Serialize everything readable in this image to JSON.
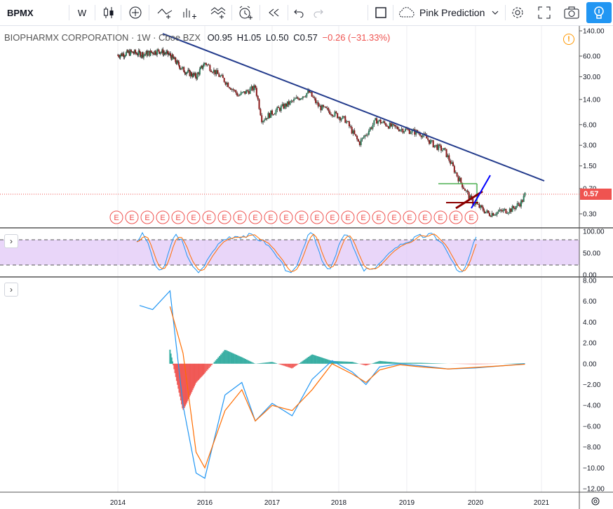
{
  "toolbar": {
    "symbol": "BPMX",
    "interval": "W",
    "bar_style_icon": "candles-icon",
    "add_icon": "plus-circle-icon",
    "compare_icon": "compare-icon",
    "indicators_icon": "indicators-icon",
    "templates_icon": "templates-icon",
    "alert_icon": "alarm-clock-icon",
    "replay_icon": "replay-icon",
    "undo_icon": "undo-icon",
    "redo_icon": "redo-icon",
    "layout_icon": "square-icon",
    "layout_name": "Pink Prediction",
    "settings_icon": "gear-icon",
    "fullscreen_icon": "fullscreen-icon",
    "snapshot_icon": "camera-icon",
    "publish_icon": "lightbulb-icon"
  },
  "legend": {
    "title": "BIOPHARMX CORPORATION · 1W · Cboe BZX",
    "open": "O0.95",
    "high": "H1.05",
    "low": "L0.50",
    "close": "C0.57",
    "change": "−0.26 (−31.33%)"
  },
  "colors": {
    "up": "#26a69a",
    "down": "#ef5350",
    "trendline": "#233b8c",
    "stoch_band": "#e1c8f7",
    "macd_line": "#2196f3",
    "signal_line": "#ff6d00",
    "price_tag": "#ef5350"
  },
  "price_tag": "0.57",
  "pane_buttons": [
    "›",
    "›"
  ],
  "earnings_marker": "E",
  "chart_data": [
    {
      "type": "candlestick",
      "scale": "log",
      "y_ticks": [
        "140.00",
        "60.00",
        "30.00",
        "14.00",
        "6.00",
        "3.00",
        "1.50",
        "0.70",
        "0.30"
      ],
      "x_ticks": [
        "2014",
        "2016",
        "2017",
        "2018",
        "2019",
        "2020",
        "2021"
      ],
      "path": [
        {
          "x": 2014.0,
          "y": 62
        },
        {
          "x": 2014.3,
          "y": 68
        },
        {
          "x": 2014.6,
          "y": 64
        },
        {
          "x": 2014.95,
          "y": 72
        },
        {
          "x": 2015.2,
          "y": 62
        },
        {
          "x": 2015.5,
          "y": 38
        },
        {
          "x": 2015.8,
          "y": 30
        },
        {
          "x": 2016.0,
          "y": 48
        },
        {
          "x": 2016.3,
          "y": 26
        },
        {
          "x": 2016.5,
          "y": 16
        },
        {
          "x": 2016.75,
          "y": 21
        },
        {
          "x": 2016.85,
          "y": 7
        },
        {
          "x": 2017.0,
          "y": 9
        },
        {
          "x": 2017.3,
          "y": 13
        },
        {
          "x": 2017.55,
          "y": 18
        },
        {
          "x": 2017.7,
          "y": 11
        },
        {
          "x": 2017.9,
          "y": 9
        },
        {
          "x": 2018.1,
          "y": 7
        },
        {
          "x": 2018.3,
          "y": 3.2
        },
        {
          "x": 2018.55,
          "y": 7
        },
        {
          "x": 2018.8,
          "y": 5.5
        },
        {
          "x": 2019.0,
          "y": 5
        },
        {
          "x": 2019.2,
          "y": 4.5
        },
        {
          "x": 2019.4,
          "y": 3
        },
        {
          "x": 2019.55,
          "y": 2.5
        },
        {
          "x": 2019.75,
          "y": 1
        },
        {
          "x": 2019.95,
          "y": 0.45
        },
        {
          "x": 2020.2,
          "y": 0.3
        },
        {
          "x": 2020.55,
          "y": 0.35
        },
        {
          "x": 2020.7,
          "y": 0.45
        },
        {
          "x": 2020.75,
          "y": 0.57
        }
      ],
      "earnings_count": 24
    },
    {
      "type": "line",
      "scale": "linear",
      "y_ticks": [
        "100.00",
        "50.00",
        "0.00"
      ],
      "band": [
        20,
        80
      ]
    },
    {
      "type": "histogram+line",
      "scale": "linear",
      "y_ticks": [
        "8.00",
        "6.00",
        "4.00",
        "2.00",
        "0.00",
        "−2.00",
        "−4.00",
        "−6.00",
        "−8.00",
        "−10.00",
        "−12.00"
      ],
      "series": [
        {
          "name": "MACD",
          "points": [
            [
              2014.5,
              5.6
            ],
            [
              2014.8,
              5.2
            ],
            [
              2015.2,
              7.0
            ],
            [
              2015.5,
              -4
            ],
            [
              2015.8,
              -10.5
            ],
            [
              2016.0,
              -11.0
            ],
            [
              2016.3,
              -3
            ],
            [
              2016.55,
              -1.8
            ],
            [
              2016.75,
              -5.5
            ],
            [
              2017.0,
              -3.8
            ],
            [
              2017.3,
              -5.0
            ],
            [
              2017.6,
              -1.5
            ],
            [
              2017.9,
              0.3
            ],
            [
              2018.2,
              -0.8
            ],
            [
              2018.4,
              -2.0
            ],
            [
              2018.6,
              -0.3
            ],
            [
              2018.9,
              0
            ],
            [
              2019.2,
              -0.2
            ],
            [
              2019.6,
              -0.5
            ],
            [
              2020.0,
              -0.4
            ],
            [
              2020.4,
              -0.2
            ],
            [
              2020.75,
              0
            ]
          ]
        },
        {
          "name": "Signal",
          "points": [
            [
              2015.2,
              5.5
            ],
            [
              2015.5,
              1
            ],
            [
              2015.8,
              -8.5
            ],
            [
              2016.0,
              -10.0
            ],
            [
              2016.3,
              -4.5
            ],
            [
              2016.55,
              -2.5
            ],
            [
              2016.75,
              -5.5
            ],
            [
              2017.0,
              -4.0
            ],
            [
              2017.3,
              -4.5
            ],
            [
              2017.6,
              -2.5
            ],
            [
              2017.9,
              0.0
            ],
            [
              2018.2,
              -1.0
            ],
            [
              2018.4,
              -1.8
            ],
            [
              2018.6,
              -0.6
            ],
            [
              2018.9,
              -0.1
            ],
            [
              2019.2,
              -0.3
            ],
            [
              2019.6,
              -0.5
            ],
            [
              2020.0,
              -0.35
            ],
            [
              2020.4,
              -0.2
            ],
            [
              2020.75,
              -0.05
            ]
          ]
        }
      ]
    }
  ]
}
